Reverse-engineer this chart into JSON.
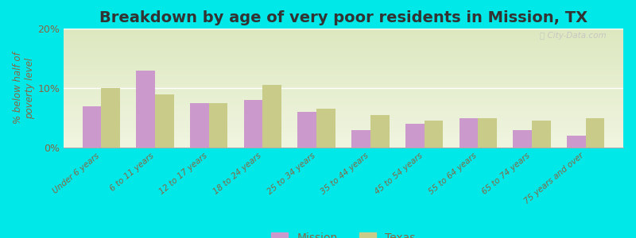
{
  "title": "Breakdown by age of very poor residents in Mission, TX",
  "ylabel": "% below half of\npoverty level",
  "categories": [
    "Under 6 years",
    "6 to 11 years",
    "12 to 17 years",
    "18 to 24 years",
    "25 to 34 years",
    "35 to 44 years",
    "45 to 54 years",
    "55 to 64 years",
    "65 to 74 years",
    "75 years and over"
  ],
  "mission_values": [
    7.0,
    13.0,
    7.5,
    8.0,
    6.0,
    3.0,
    4.0,
    5.0,
    3.0,
    2.0
  ],
  "texas_values": [
    10.0,
    9.0,
    7.5,
    10.5,
    6.5,
    5.5,
    4.5,
    5.0,
    4.5,
    5.0
  ],
  "mission_color": "#cc99cc",
  "texas_color": "#c8cc88",
  "background_outer": "#00e8e8",
  "background_inner": "#eef2de",
  "ylim": [
    0,
    20
  ],
  "yticks": [
    0,
    10,
    20
  ],
  "ytick_labels": [
    "0%",
    "10%",
    "20%"
  ],
  "bar_width": 0.35,
  "title_fontsize": 14,
  "tick_label_fontsize": 7.5,
  "ylabel_fontsize": 8.5,
  "legend_labels": [
    "Mission",
    "Texas"
  ],
  "label_color": "#886644",
  "watermark_color": "#c0c0c0"
}
